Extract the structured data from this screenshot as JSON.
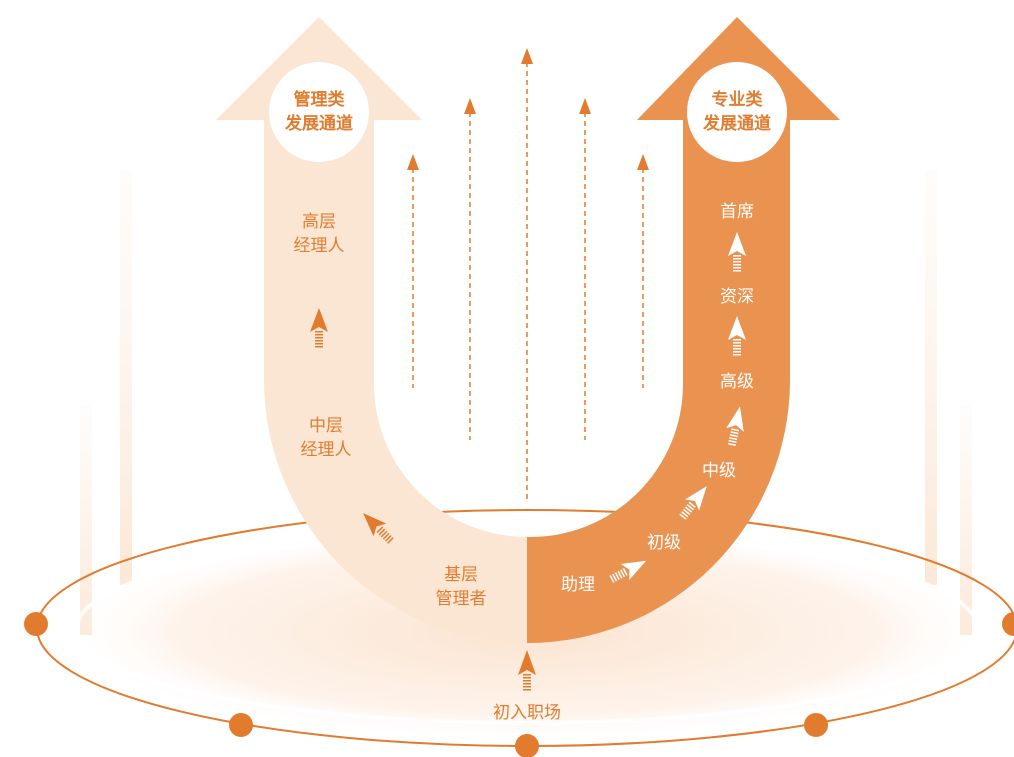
{
  "colors": {
    "mgmt_arrow": "#fbe6d4",
    "prof_arrow": "#ea9350",
    "accent": "#e27b2e",
    "platform": "#fbe2cd",
    "label_orange": "#e07d30"
  },
  "management": {
    "title_line1": "管理类",
    "title_line2": "发展通道",
    "levels": {
      "senior_line1": "高层",
      "senior_line2": "经理人",
      "middle_line1": "中层",
      "middle_line2": "经理人",
      "base_line1": "基层",
      "base_line2": "管理者"
    }
  },
  "professional": {
    "title_line1": "专业类",
    "title_line2": "发展通道",
    "levels": {
      "assistant": "助理",
      "junior": "初级",
      "intermediate": "中级",
      "senior": "高级",
      "expert": "资深",
      "chief": "首席"
    }
  },
  "entry": {
    "label": "初入职场"
  }
}
